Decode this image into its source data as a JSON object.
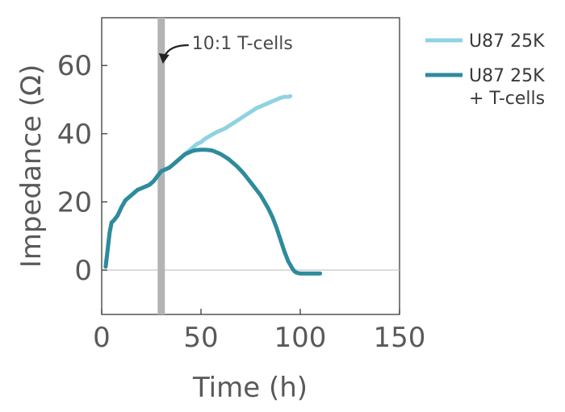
{
  "chart_data": {
    "type": "line",
    "title": "",
    "xlabel": "Time (h)",
    "ylabel": "Impedance (Ω)",
    "xlim": [
      0,
      150
    ],
    "ylim": [
      -13,
      74
    ],
    "xticks": [
      0,
      50,
      100,
      150
    ],
    "yticks": [
      0,
      20,
      40,
      60
    ],
    "zero_line": 0,
    "grid": false,
    "legend_position": "right",
    "series": [
      {
        "name": "U87 25K",
        "color": "#8fd3e0",
        "x": [
          2,
          3,
          4,
          5,
          6,
          8,
          10,
          12,
          14,
          16,
          18,
          20,
          22,
          24,
          26,
          28,
          30,
          32,
          34,
          36,
          38,
          40,
          42,
          44,
          46,
          48,
          50,
          52,
          55,
          58,
          62,
          66,
          70,
          74,
          78,
          82,
          86,
          88,
          90,
          92,
          94,
          95
        ],
        "values": [
          1,
          6,
          11,
          14,
          14.5,
          16,
          18.5,
          20.5,
          21.5,
          22.5,
          23.5,
          24,
          24.5,
          25,
          26,
          27.5,
          29,
          29.5,
          30,
          31,
          32,
          33,
          34,
          35,
          36,
          37,
          37.5,
          38.5,
          39.5,
          40.5,
          41.5,
          43,
          44.5,
          46,
          47.5,
          48.5,
          49.5,
          50,
          50.5,
          50.8,
          50.8,
          51
        ]
      },
      {
        "name": "U87 25K\n+ T-cells",
        "color": "#2e8b9c",
        "x": [
          2,
          3,
          4,
          5,
          6,
          8,
          10,
          12,
          14,
          16,
          18,
          20,
          22,
          24,
          26,
          28,
          30,
          32,
          34,
          36,
          38,
          40,
          42,
          44,
          46,
          48,
          50,
          52,
          54,
          56,
          58,
          60,
          62,
          64,
          66,
          68,
          70,
          72,
          74,
          76,
          78,
          80,
          82,
          84,
          86,
          88,
          90,
          92,
          94,
          96,
          97,
          98,
          99,
          100,
          102,
          106,
          110
        ],
        "values": [
          1,
          6,
          11,
          14,
          14.5,
          16,
          18.5,
          20.5,
          21.5,
          22.5,
          23.5,
          24,
          24.5,
          25,
          26,
          27.5,
          29,
          29.5,
          30,
          31,
          32,
          33,
          34,
          34.5,
          35,
          35.2,
          35.3,
          35.3,
          35.2,
          35,
          34.5,
          34,
          33.3,
          32.5,
          31.5,
          30.5,
          29.3,
          28,
          26.5,
          25,
          23.5,
          22,
          20,
          18,
          15.5,
          12.5,
          9,
          5.5,
          2.5,
          0.5,
          -0.3,
          -0.7,
          -0.9,
          -1,
          -1,
          -1,
          -1
        ]
      }
    ],
    "annotations": [
      {
        "text": "10:1 T-cells",
        "x": 30
      }
    ]
  }
}
